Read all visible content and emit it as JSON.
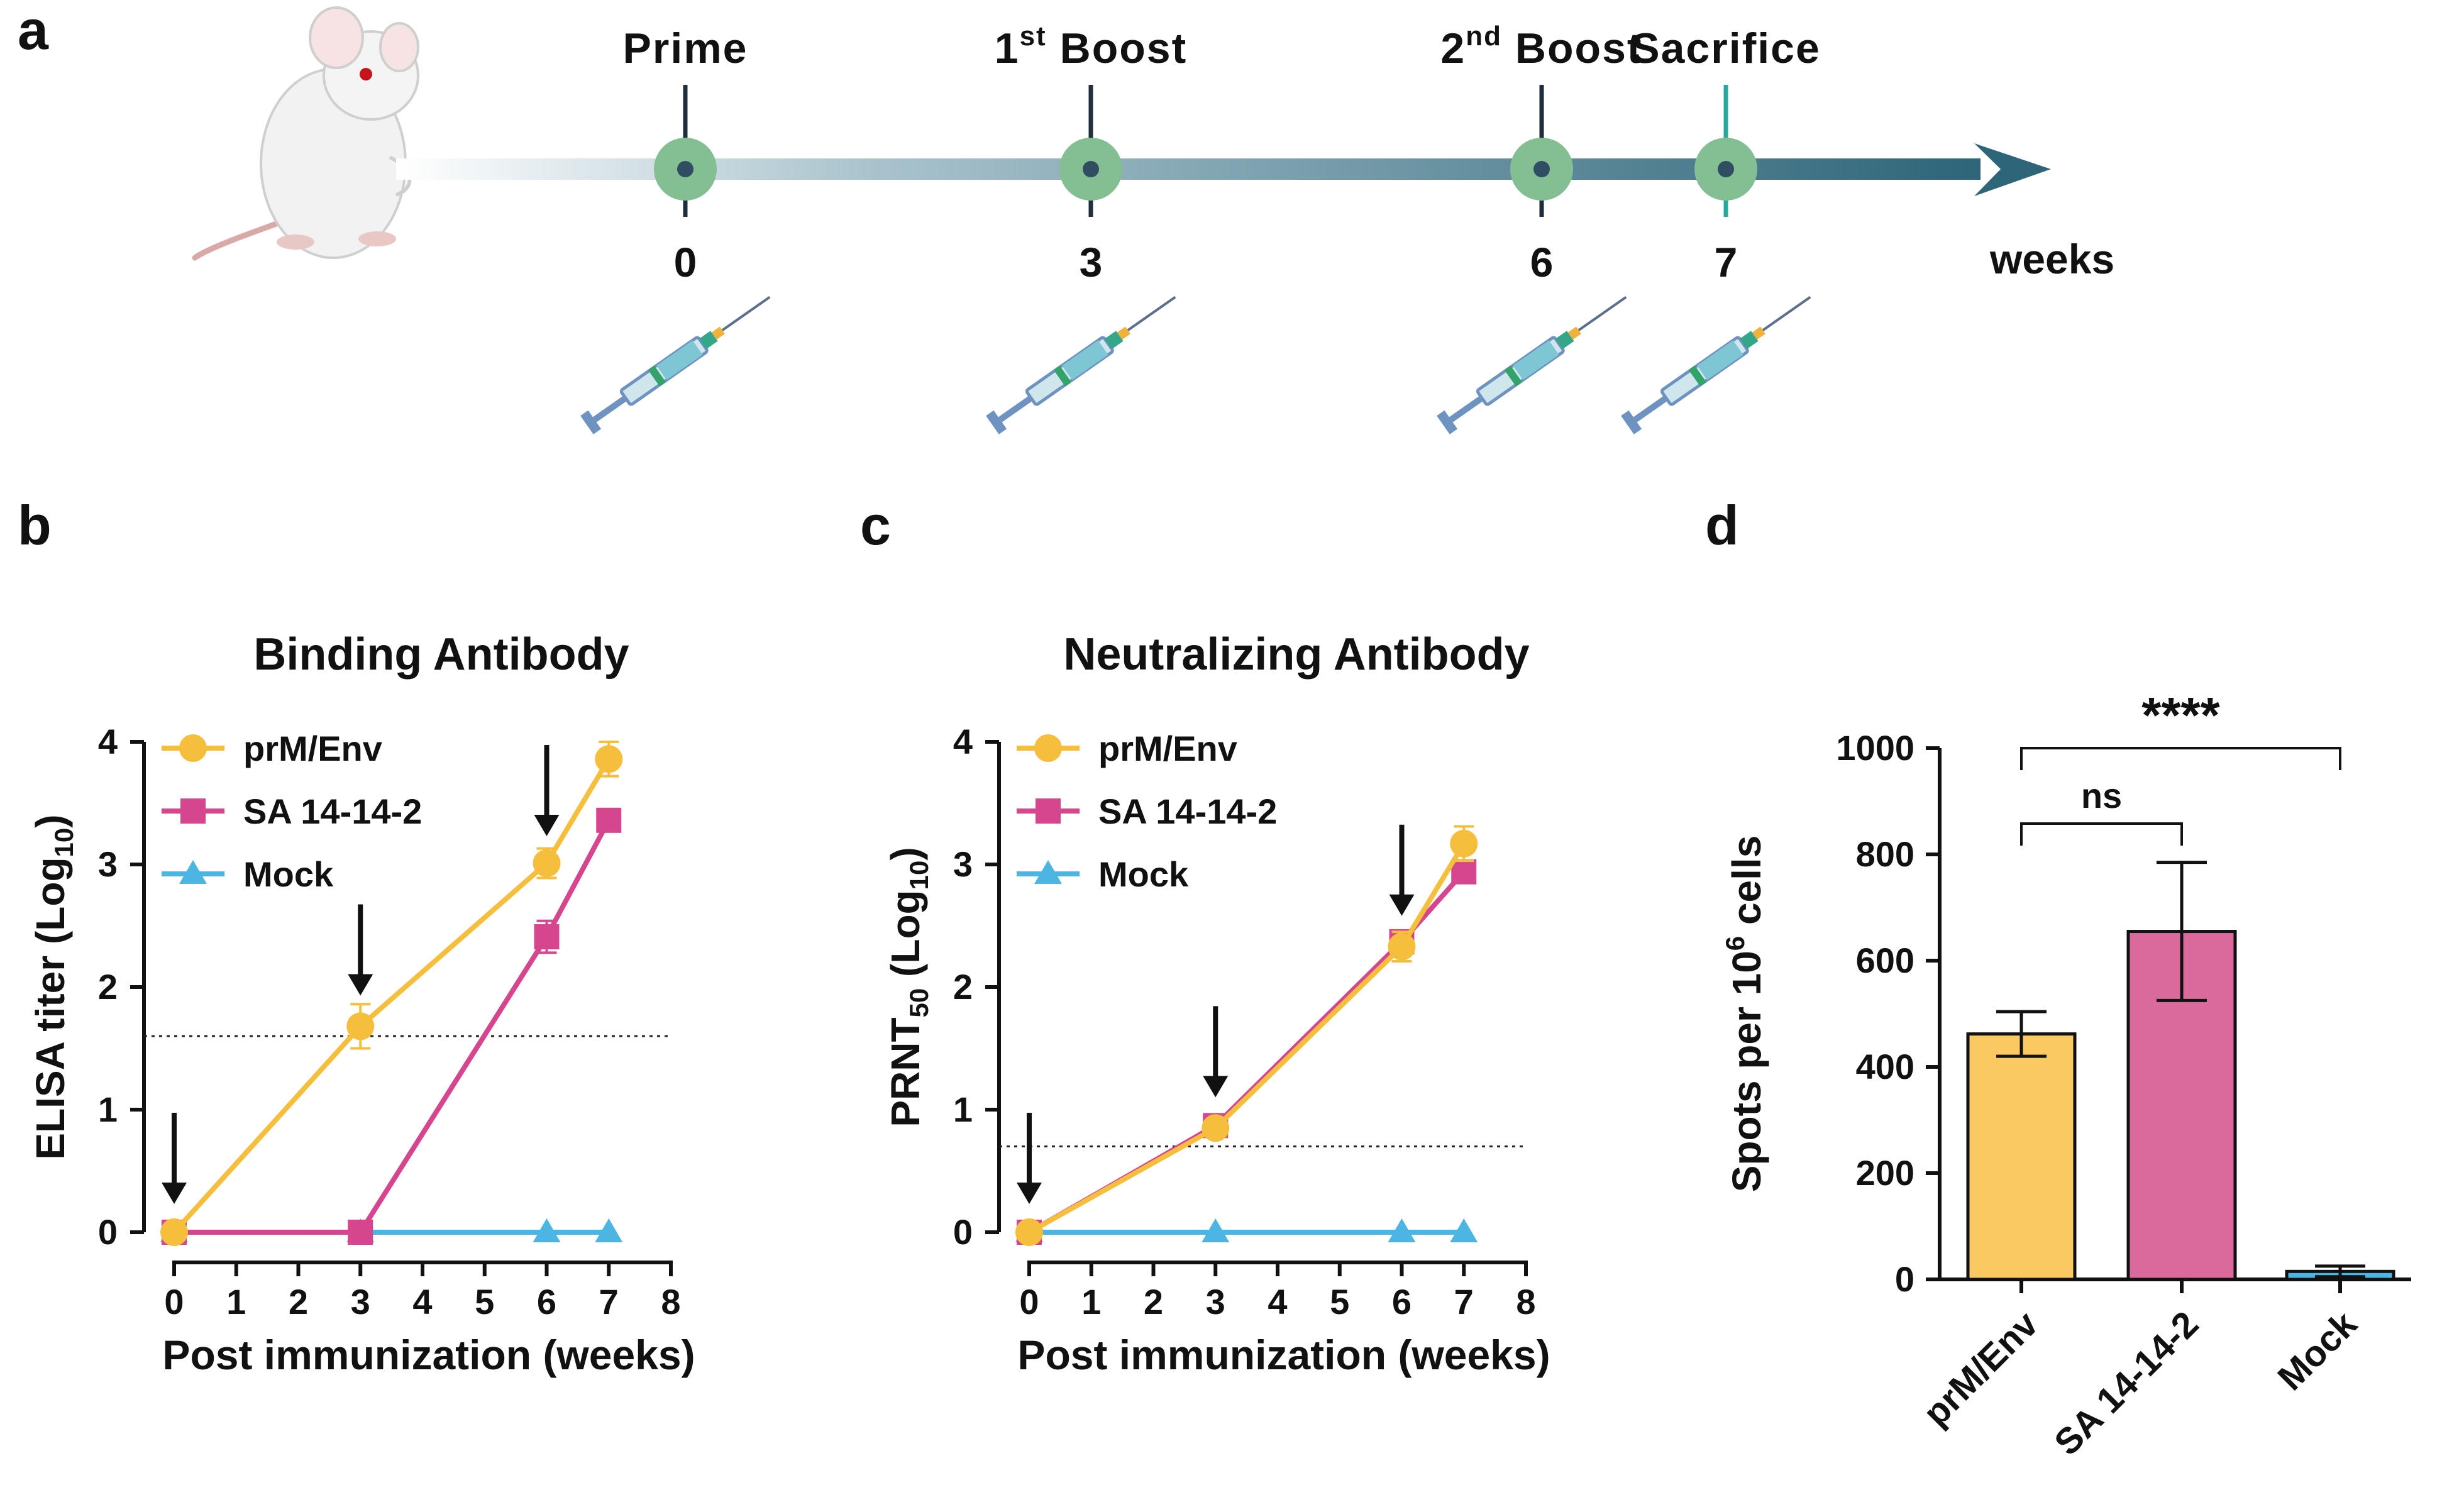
{
  "panel_labels": {
    "a": "a",
    "b": "b",
    "c": "c",
    "d": "d"
  },
  "colors": {
    "prm": "#F5BE3C",
    "sa": "#D5468F",
    "mock": "#4CB5E2",
    "bar_prm": "#FBC962",
    "bar_sa": "#DA6A9C",
    "bar_mock": "#4CB5E2",
    "node": "#84BF94",
    "node_dot": "#2F4E62",
    "timeline_dark": "#2E6579",
    "sacrifice_tick": "#2BA89B"
  },
  "timeline": {
    "events": [
      {
        "label": "Prime",
        "week": "0"
      },
      {
        "label": "1",
        "sup": "st",
        "tail": " Boost",
        "week": "3"
      },
      {
        "label": "2",
        "sup": "nd",
        "tail": " Boost",
        "week": "6"
      },
      {
        "label": "Sacrifice",
        "week": "7"
      }
    ],
    "unit": "weeks"
  },
  "chart_data": [
    {
      "type": "line",
      "title": "Binding Antibody",
      "xlabel": "Post immunization (weeks)",
      "ylabel": "ELISA titer (Log",
      "ylabel_sub": "10",
      "ylabel_end": ")",
      "xlim": [
        0,
        8
      ],
      "ylim": [
        0,
        4
      ],
      "xticks": [
        "0",
        "1",
        "2",
        "3",
        "4",
        "5",
        "6",
        "7",
        "8"
      ],
      "yticks": [
        "0",
        "1",
        "2",
        "3",
        "4"
      ],
      "threshold": 1.6,
      "arrows_at": [
        [
          0,
          0
        ],
        [
          3,
          1.7
        ],
        [
          6,
          3.0
        ]
      ],
      "series": [
        {
          "name": "prM/Env",
          "marker": "circle",
          "x": [
            0,
            3,
            6,
            7
          ],
          "y": [
            0,
            1.68,
            3.01,
            3.86
          ],
          "err": [
            0.04,
            0.18,
            0.12,
            0.14
          ]
        },
        {
          "name": "SA 14-14-2",
          "marker": "square",
          "x": [
            0,
            3,
            6,
            7
          ],
          "y": [
            0,
            0,
            2.41,
            3.36
          ],
          "err": [
            0.03,
            0.03,
            0.13,
            0.08
          ]
        },
        {
          "name": "Mock",
          "marker": "triangle",
          "x": [
            0,
            3,
            6,
            7
          ],
          "y": [
            0,
            0,
            0,
            0
          ],
          "err": [
            0,
            0,
            0,
            0
          ]
        }
      ]
    },
    {
      "type": "line",
      "title": "Neutralizing Antibody",
      "xlabel": "Post immunization (weeks)",
      "ylabel": "PRNT",
      "ylabel_sub": "50",
      "ylabel_end": " (Log",
      "ylabel_sub2": "10",
      "ylabel_end2": ")",
      "xlim": [
        0,
        8
      ],
      "ylim": [
        0,
        4
      ],
      "xticks": [
        "0",
        "1",
        "2",
        "3",
        "4",
        "5",
        "6",
        "7",
        "8"
      ],
      "yticks": [
        "0",
        "1",
        "2",
        "3",
        "4"
      ],
      "threshold": 0.7,
      "arrows_at": [
        [
          0,
          0
        ],
        [
          3,
          0.87
        ],
        [
          6,
          2.35
        ]
      ],
      "series": [
        {
          "name": "prM/Env",
          "marker": "circle",
          "x": [
            0,
            3,
            6,
            7
          ],
          "y": [
            0,
            0.85,
            2.33,
            3.17
          ],
          "err": [
            0.03,
            0.06,
            0.12,
            0.14
          ]
        },
        {
          "name": "SA 14-14-2",
          "marker": "square",
          "x": [
            0,
            3,
            6,
            7
          ],
          "y": [
            0,
            0.87,
            2.37,
            2.94
          ],
          "err": [
            0.03,
            0.05,
            0.08,
            0.08
          ]
        },
        {
          "name": "Mock",
          "marker": "triangle",
          "x": [
            0,
            3,
            6,
            7
          ],
          "y": [
            0,
            0,
            0,
            0
          ],
          "err": [
            0,
            0,
            0,
            0
          ]
        }
      ]
    },
    {
      "type": "bar",
      "categories": [
        "prM/Env",
        "SA 14-14-2",
        "Mock"
      ],
      "values": [
        462,
        655,
        15
      ],
      "err": [
        42,
        130,
        10
      ],
      "ylabel": "Spots per 10",
      "ylabel_sup": "6",
      "ylabel_end": " cells",
      "ylim": [
        0,
        1000
      ],
      "yticks": [
        "0",
        "200",
        "400",
        "600",
        "800",
        "1000"
      ],
      "significance": [
        {
          "from": 0,
          "to": 1,
          "label": "ns"
        },
        {
          "from": 0,
          "to": 2,
          "label": "****"
        }
      ]
    }
  ]
}
